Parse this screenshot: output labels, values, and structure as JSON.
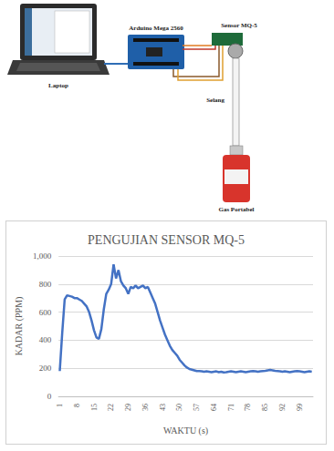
{
  "diagram": {
    "labels": {
      "laptop": "Laptop",
      "board": "Arduino Mega 2560",
      "sensor": "Sensor MQ-5",
      "hose": "Selang",
      "gas": "Gas Portabel"
    }
  },
  "chart_data": {
    "type": "line",
    "title": "PENGUJIAN SENSOR MQ-5",
    "x_label": "WAKTU (s)",
    "y_label": "KADAR (PPM)",
    "categories": [
      "1",
      null,
      null,
      null,
      null,
      null,
      null,
      "8",
      null,
      null,
      null,
      null,
      null,
      null,
      "15",
      null,
      null,
      null,
      null,
      null,
      null,
      "22",
      null,
      null,
      null,
      null,
      null,
      null,
      "29",
      null,
      null,
      null,
      null,
      null,
      null,
      "36",
      null,
      null,
      null,
      null,
      null,
      null,
      "43",
      null,
      null,
      null,
      null,
      null,
      null,
      "50",
      null,
      null,
      null,
      null,
      null,
      null,
      "57",
      null,
      null,
      null,
      null,
      null,
      null,
      "64",
      null,
      null,
      null,
      null,
      null,
      null,
      "71",
      null,
      null,
      null,
      null,
      null,
      null,
      "78",
      null,
      null,
      null,
      null,
      null,
      null,
      "85",
      null,
      null,
      null,
      null,
      null,
      null,
      "92",
      null,
      null,
      null,
      null,
      null,
      null,
      "99",
      null,
      null,
      null,
      null,
      null
    ],
    "values": [
      180,
      450,
      690,
      720,
      715,
      710,
      700,
      700,
      690,
      680,
      660,
      640,
      600,
      540,
      470,
      420,
      410,
      480,
      620,
      730,
      760,
      800,
      940,
      840,
      900,
      820,
      790,
      770,
      730,
      780,
      770,
      790,
      770,
      780,
      790,
      770,
      780,
      740,
      700,
      660,
      600,
      540,
      490,
      440,
      400,
      360,
      330,
      310,
      290,
      260,
      240,
      220,
      205,
      195,
      190,
      185,
      180,
      180,
      178,
      175,
      178,
      175,
      172,
      175,
      178,
      172,
      175,
      170,
      172,
      175,
      178,
      175,
      172,
      175,
      178,
      175,
      172,
      175,
      178,
      180,
      178,
      175,
      178,
      180,
      182,
      185,
      188,
      185,
      182,
      180,
      178,
      175,
      178,
      175,
      172,
      175,
      178,
      180,
      178,
      175,
      172,
      175,
      178,
      175
    ],
    "color": "#4472c4",
    "ylim": [
      0,
      1000
    ],
    "yticks": [
      0,
      200,
      400,
      600,
      800,
      1000
    ],
    "grid": true
  }
}
